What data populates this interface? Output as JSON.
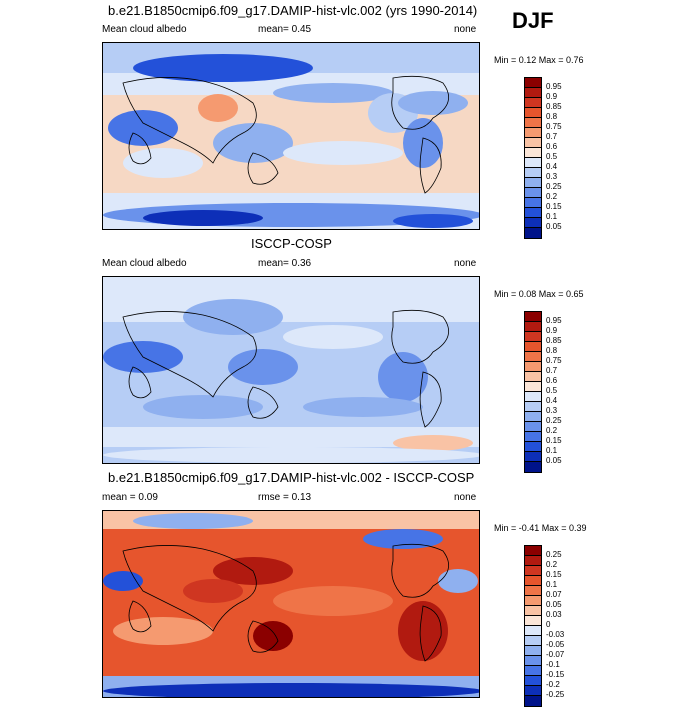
{
  "season": "DJF",
  "panels": [
    {
      "title": "b.e21.B1850cmip6.f09_g17.DAMIP-hist-vlc.002 (yrs 1990-2014)",
      "left_label": "Mean cloud albedo",
      "center_label": "mean=   0.45",
      "right_label": "none",
      "minmax": "Min =   0.12 Max =   0.76"
    },
    {
      "title": "ISCCP-COSP",
      "left_label": "Mean cloud albedo",
      "center_label": "mean=   0.36",
      "right_label": "none",
      "minmax": "Min =  0.08 Max =   0.65"
    },
    {
      "title": "b.e21.B1850cmip6.f09_g17.DAMIP-hist-vlc.002 - ISCCP-COSP",
      "left_label": "mean =   0.09",
      "center_label": "rmse =   0.13",
      "right_label": "none",
      "minmax": "Min =  -0.41 Max =   0.39"
    }
  ],
  "colorbars": {
    "albedo": {
      "labels": [
        "0.95",
        "0.9",
        "0.85",
        "0.8",
        "0.75",
        "0.7",
        "0.6",
        "0.5",
        "0.4",
        "0.3",
        "0.25",
        "0.2",
        "0.15",
        "0.1",
        "0.05"
      ],
      "colors": [
        "#8b0000",
        "#b11a10",
        "#cf3621",
        "#e6552d",
        "#ef7448",
        "#f59a70",
        "#f9c3a5",
        "#fbe6d8",
        "#dde8fa",
        "#b6cdf5",
        "#8fb0ef",
        "#6a92eb",
        "#4774e6",
        "#2351d9",
        "#0d2fb8",
        "#00138a"
      ]
    },
    "diff": {
      "labels": [
        "0.25",
        "0.2",
        "0.15",
        "0.1",
        "0.07",
        "0.05",
        "0.03",
        "0",
        "-0.03",
        "-0.05",
        "-0.07",
        "-0.1",
        "-0.15",
        "-0.2",
        "-0.25"
      ],
      "colors": [
        "#8b0000",
        "#b11a10",
        "#cf3621",
        "#e6552d",
        "#ef7448",
        "#f59a70",
        "#f9c3a5",
        "#fbe6d8",
        "#dde8fa",
        "#b6cdf5",
        "#8fb0ef",
        "#6a92eb",
        "#4774e6",
        "#2351d9",
        "#0d2fb8",
        "#00138a"
      ]
    }
  }
}
